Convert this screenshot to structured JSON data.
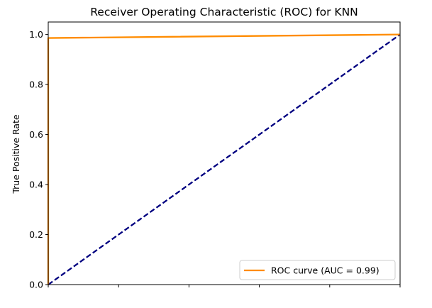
{
  "chart_data": {
    "type": "line",
    "title": "Receiver Operating Characteristic (ROC) for KNN",
    "xlabel": "",
    "ylabel": "True Positive Rate",
    "xlim": [
      0,
      1
    ],
    "ylim": [
      0,
      1.05
    ],
    "x_ticks": [
      0,
      0.2,
      0.4,
      0.6,
      0.8,
      1.0
    ],
    "y_ticks": [
      0.0,
      0.2,
      0.4,
      0.6,
      0.8,
      1.0
    ],
    "y_tick_labels": [
      "0.0",
      "0.2",
      "0.4",
      "0.6",
      "0.8",
      "1.0"
    ],
    "grid": false,
    "legend_position": "lower-right",
    "series": [
      {
        "name": "ROC curve (AUC = 0.99)",
        "color": "#ff8c00",
        "style": "solid",
        "x": [
          0.0,
          0.0,
          0.0,
          1.0
        ],
        "y": [
          0.0,
          0.0,
          0.986,
          1.0
        ]
      },
      {
        "color": "#000080",
        "style": "dashed",
        "x": [
          0.0,
          1.0
        ],
        "y": [
          0.0,
          1.0
        ]
      }
    ]
  }
}
